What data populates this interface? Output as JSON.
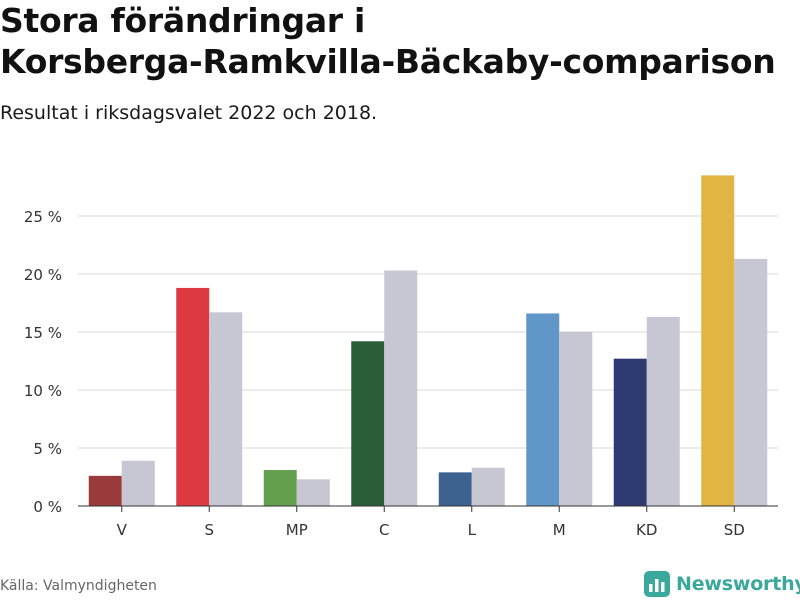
{
  "header": {
    "title_line1": "Stora förändringar i",
    "title_line2": "Korsberga-Ramkvilla-Bäckaby-comparison",
    "subtitle": "Resultat i riksdagsvalet 2022 och 2018."
  },
  "footer": {
    "source": "Källa: Valmyndigheten",
    "brand": "Newsworthy",
    "brand_color": "#3aa89a"
  },
  "chart_data": {
    "type": "bar",
    "categories": [
      "V",
      "S",
      "MP",
      "C",
      "L",
      "M",
      "KD",
      "SD"
    ],
    "series": [
      {
        "values": [
          2.6,
          18.8,
          3.1,
          14.2,
          2.9,
          16.6,
          12.7,
          28.5
        ],
        "colors": [
          "#9b3a3a",
          "#dc3a40",
          "#62a04e",
          "#2a5e38",
          "#3d6290",
          "#6197c8",
          "#2e3a72",
          "#e0b544"
        ]
      },
      {
        "values": [
          3.9,
          16.7,
          2.3,
          20.3,
          3.3,
          15.0,
          16.3,
          21.3
        ],
        "color": "#c7c6d3"
      }
    ],
    "yticks": [
      0,
      5,
      10,
      15,
      20,
      25
    ],
    "ytick_labels": [
      "0 %",
      "5 %",
      "10 %",
      "15 %",
      "20 %",
      "25 %"
    ],
    "ylim": [
      0,
      29
    ],
    "xlabel": "",
    "ylabel": "",
    "grid": true,
    "legend": "none"
  }
}
